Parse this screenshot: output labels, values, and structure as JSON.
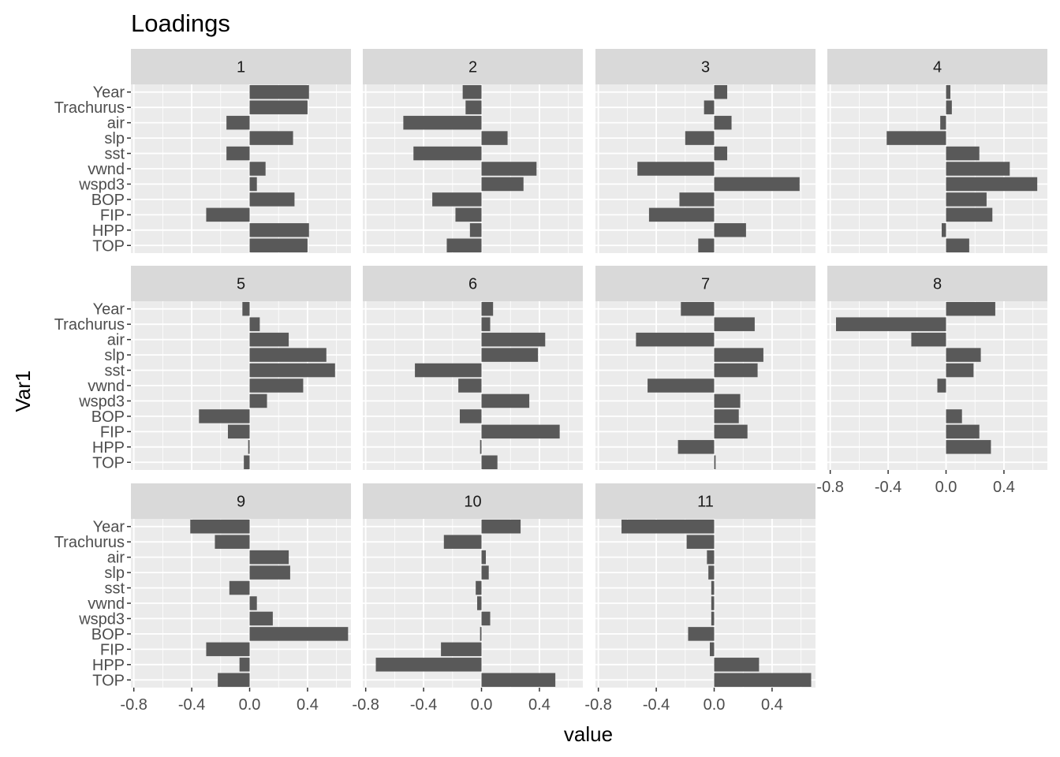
{
  "chart_data": {
    "type": "bar",
    "orientation": "horizontal",
    "facet_layout": "wrap, 4 columns",
    "title": "Loadings",
    "xlabel": "value",
    "ylabel": "Var1",
    "xlim": [
      -0.82,
      0.7
    ],
    "xticks": [
      "-0.8",
      "-0.4",
      "0.0",
      "0.4"
    ],
    "categories": [
      "TOP",
      "HPP",
      "FIP",
      "BOP",
      "wspd3",
      "vwnd",
      "sst",
      "slp",
      "air",
      "Trachurus",
      "Year"
    ],
    "colors": {
      "bar": "#595959",
      "panel_bg": "#ebebeb",
      "strip_bg": "#d9d9d9",
      "grid": "#ffffff"
    },
    "grid": true,
    "facets": [
      {
        "label": "1",
        "values": [
          0.4,
          0.41,
          -0.3,
          0.31,
          0.05,
          0.11,
          -0.16,
          0.3,
          -0.16,
          0.4,
          0.41
        ]
      },
      {
        "label": "2",
        "values": [
          -0.24,
          -0.08,
          -0.18,
          -0.34,
          0.29,
          0.38,
          -0.47,
          0.18,
          -0.54,
          -0.11,
          -0.13
        ]
      },
      {
        "label": "3",
        "values": [
          -0.11,
          0.22,
          -0.45,
          -0.24,
          0.59,
          -0.53,
          0.09,
          -0.2,
          0.12,
          -0.07,
          0.09
        ]
      },
      {
        "label": "4",
        "values": [
          0.16,
          -0.03,
          0.32,
          0.28,
          0.63,
          0.44,
          0.23,
          -0.41,
          -0.04,
          0.04,
          0.03
        ]
      },
      {
        "label": "5",
        "values": [
          -0.04,
          -0.01,
          -0.15,
          -0.35,
          0.12,
          0.37,
          0.59,
          0.53,
          0.27,
          0.07,
          -0.05
        ]
      },
      {
        "label": "6",
        "values": [
          0.11,
          -0.01,
          0.54,
          -0.15,
          0.33,
          -0.16,
          -0.46,
          0.39,
          0.44,
          0.06,
          0.08
        ]
      },
      {
        "label": "7",
        "values": [
          0.01,
          -0.25,
          0.23,
          0.17,
          0.18,
          -0.46,
          0.3,
          0.34,
          -0.54,
          0.28,
          -0.23
        ]
      },
      {
        "label": "8",
        "values": [
          0.0,
          0.31,
          0.23,
          0.11,
          0.0,
          -0.06,
          0.19,
          0.24,
          -0.24,
          -0.76,
          0.34
        ]
      },
      {
        "label": "9",
        "values": [
          -0.22,
          -0.07,
          -0.3,
          0.68,
          0.16,
          0.05,
          -0.14,
          0.28,
          0.27,
          -0.24,
          -0.41
        ]
      },
      {
        "label": "10",
        "values": [
          0.51,
          -0.73,
          -0.28,
          -0.01,
          0.06,
          -0.03,
          -0.04,
          0.05,
          0.03,
          -0.26,
          0.27
        ]
      },
      {
        "label": "11",
        "values": [
          0.67,
          0.31,
          -0.03,
          -0.18,
          -0.02,
          -0.02,
          -0.02,
          -0.04,
          -0.05,
          -0.19,
          -0.64
        ]
      }
    ]
  }
}
